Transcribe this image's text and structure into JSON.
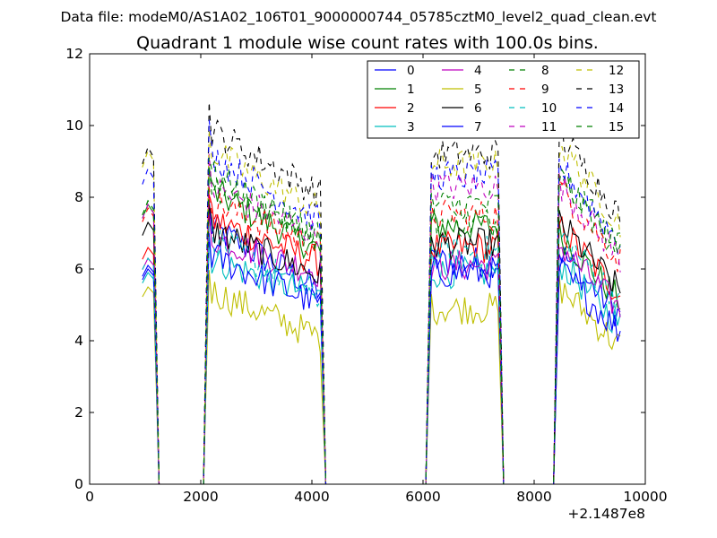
{
  "header": {
    "data_file": "Data file: modeM0/AS1A02_106T01_9000000744_05785cztM0_level2_quad_clean.evt"
  },
  "chart_data": {
    "type": "line",
    "title": "Quadrant 1 module wise count rates with 100.0s bins.",
    "xlabel": "",
    "ylabel": "",
    "x_offset_label": "+2.1487e8",
    "xlim": [
      0,
      10000
    ],
    "ylim": [
      0,
      12
    ],
    "xticks": [
      0,
      2000,
      4000,
      6000,
      8000,
      10000
    ],
    "yticks": [
      0,
      2,
      4,
      6,
      8,
      10,
      12
    ],
    "grid": false,
    "legend_position": "top-right",
    "segments": [
      {
        "start": 950,
        "end": 1150
      },
      {
        "start": 2150,
        "end": 4150
      },
      {
        "start": 6150,
        "end": 7350
      },
      {
        "start": 8450,
        "end": 9550
      }
    ],
    "series": [
      {
        "name": "0",
        "color": "#0000ff",
        "dash": "solid",
        "levels": [
          6.0,
          7.2,
          5.4,
          6.2,
          5.5
        ]
      },
      {
        "name": "1",
        "color": "#008000",
        "dash": "solid",
        "levels": [
          7.8,
          8.2,
          6.5,
          7.2,
          6.0
        ]
      },
      {
        "name": "2",
        "color": "#ff0000",
        "dash": "solid",
        "levels": [
          6.6,
          7.4,
          6.2,
          6.6,
          6.2
        ]
      },
      {
        "name": "3",
        "color": "#00bfbf",
        "dash": "solid",
        "levels": [
          5.9,
          6.3,
          5.2,
          5.9,
          5.2
        ]
      },
      {
        "name": "4",
        "color": "#bf00bf",
        "dash": "solid",
        "levels": [
          6.3,
          6.9,
          5.9,
          6.1,
          5.7
        ]
      },
      {
        "name": "5",
        "color": "#bfbf00",
        "dash": "solid",
        "levels": [
          5.5,
          5.4,
          4.1,
          4.9,
          4.5
        ]
      },
      {
        "name": "6",
        "color": "#000000",
        "dash": "solid",
        "levels": [
          7.3,
          7.1,
          5.8,
          6.7,
          6.3
        ]
      },
      {
        "name": "7",
        "color": "#0000ff",
        "dash": "solid",
        "levels": [
          6.1,
          6.4,
          5.0,
          5.9,
          5.0
        ]
      },
      {
        "name": "8",
        "color": "#008000",
        "dash": "dashed",
        "levels": [
          7.9,
          8.4,
          7.0,
          7.3,
          7.8
        ]
      },
      {
        "name": "9",
        "color": "#ff0000",
        "dash": "dashed",
        "levels": [
          7.7,
          7.9,
          6.6,
          7.5,
          7.3
        ]
      },
      {
        "name": "10",
        "color": "#00bfbf",
        "dash": "dashed",
        "levels": [
          6.3,
          6.9,
          5.2,
          6.5,
          6.0
        ]
      },
      {
        "name": "11",
        "color": "#bf00bf",
        "dash": "dashed",
        "levels": [
          7.8,
          8.3,
          6.9,
          8.3,
          7.4
        ]
      },
      {
        "name": "12",
        "color": "#bfbf00",
        "dash": "dashed",
        "levels": [
          9.3,
          9.3,
          7.6,
          8.9,
          8.5
        ]
      },
      {
        "name": "13",
        "color": "#000000",
        "dash": "dashed",
        "levels": [
          9.4,
          9.9,
          8.1,
          9.2,
          8.8
        ]
      },
      {
        "name": "14",
        "color": "#0000ff",
        "dash": "dashed",
        "levels": [
          8.8,
          9.2,
          7.3,
          8.6,
          7.9
        ]
      },
      {
        "name": "15",
        "color": "#008000",
        "dash": "dashed",
        "levels": [
          7.9,
          8.7,
          6.8,
          7.8,
          7.6
        ]
      }
    ]
  }
}
